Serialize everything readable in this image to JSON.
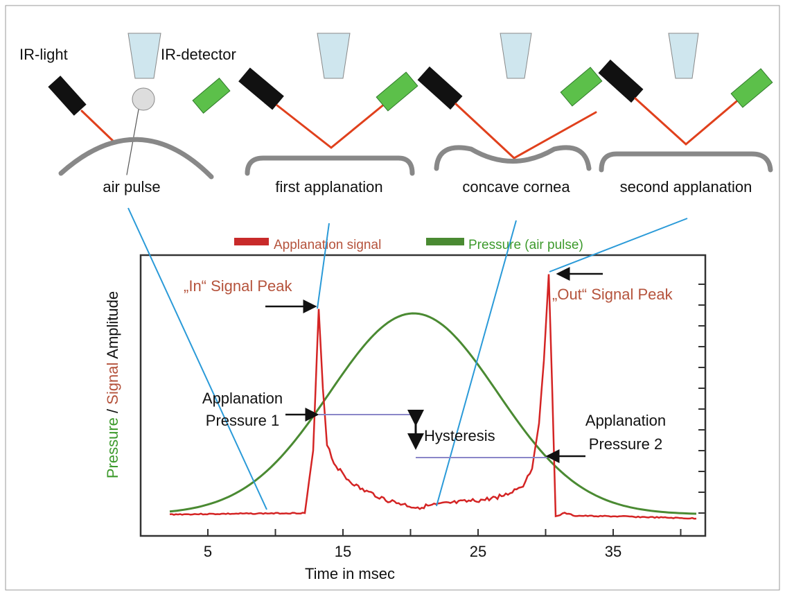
{
  "diagram": {
    "labels": {
      "ir_light": "IR-light",
      "ir_detector": "IR-detector",
      "air_pulse": "air pulse",
      "first_applanation": "first applanation",
      "concave_cornea": "concave cornea",
      "second_applanation": "second applanation"
    },
    "legend": [
      "Applanation signal",
      "Pressure (air pulse)"
    ],
    "y_axis_label": {
      "pressure": "Pressure",
      "slash": "/",
      "signal": "Signal",
      "amplitude": "Amplitude"
    },
    "x_axis_label": "Time in msec",
    "x_tick_labels": [
      "5",
      "15",
      "25",
      "35"
    ],
    "annotations": {
      "in_peak": "„In“ Signal Peak",
      "out_peak": "„Out“ Signal Peak",
      "applanation_1": [
        "Applanation",
        "Pressure 1"
      ],
      "hysteresis": "Hysteresis",
      "applanation_2": [
        "Applanation",
        "Pressure 2"
      ]
    }
  }
}
